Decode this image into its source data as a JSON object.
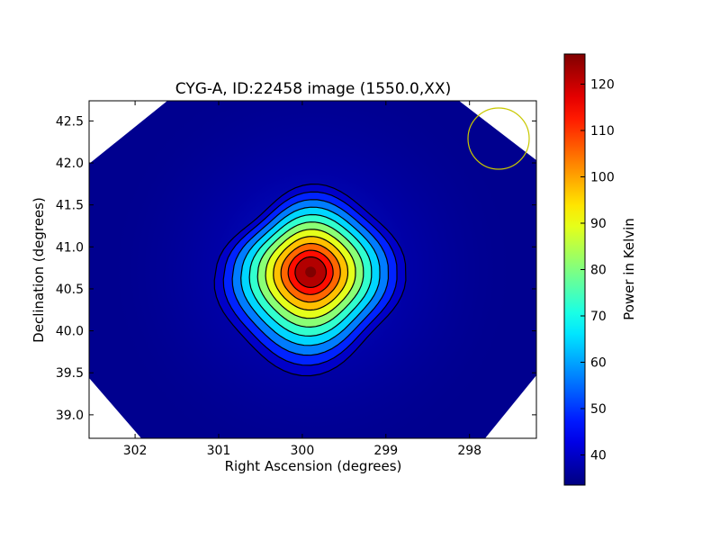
{
  "chart_data": {
    "type": "heatmap",
    "title": "CYG-A, ID:22458 image (1550.0,XX)",
    "xlabel": "Right Ascension (degrees)",
    "ylabel": "Declination (degrees)",
    "xlim": [
      302.55,
      297.2
    ],
    "ylim": [
      38.72,
      42.74
    ],
    "x_ticks": [
      302,
      301,
      300,
      299,
      298
    ],
    "y_ticks": [
      39.0,
      39.5,
      40.0,
      40.5,
      41.0,
      41.5,
      42.0,
      42.5
    ],
    "x_tick_labels": [
      "302",
      "301",
      "300",
      "299",
      "298"
    ],
    "y_tick_labels": [
      "39.0",
      "39.5",
      "40.0",
      "40.5",
      "41.0",
      "41.5",
      "42.0",
      "42.5"
    ],
    "colormap": "jet",
    "colorbar": {
      "label": "Power in Kelvin",
      "range": [
        33.5,
        126.5
      ],
      "ticks": [
        40,
        50,
        60,
        70,
        80,
        90,
        100,
        110,
        120
      ],
      "tick_labels": [
        "40",
        "50",
        "60",
        "70",
        "80",
        "90",
        "100",
        "110",
        "120"
      ]
    },
    "source": {
      "ra": 299.9,
      "dec": 40.7,
      "peak": 126,
      "background": 36
    },
    "contour_count": 11,
    "beam_marker": {
      "ra": 297.65,
      "dec": 42.3,
      "color": "#c8c800"
    },
    "masked_color": "#ffffff",
    "grid": false
  }
}
